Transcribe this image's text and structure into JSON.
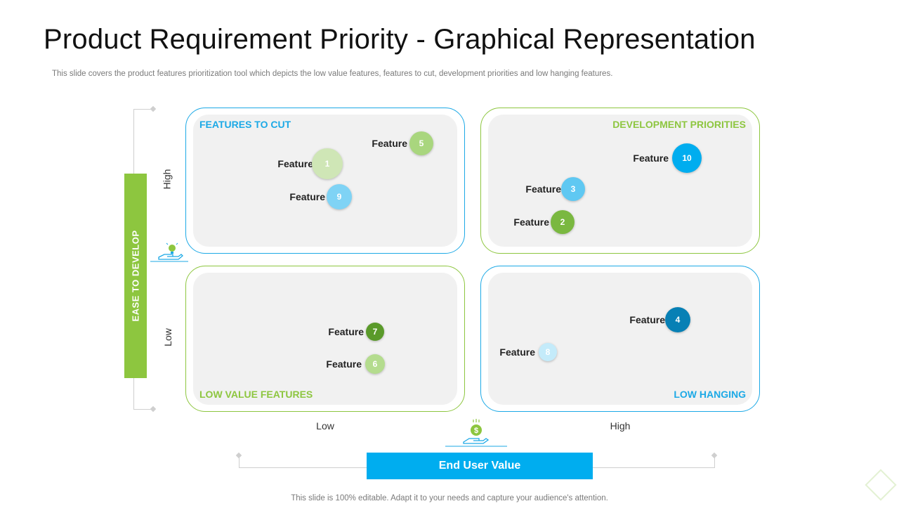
{
  "title": "Product Requirement Priority - Graphical Representation",
  "subtitle": "This slide covers the product features prioritization tool which depicts the low value features, features to cut,  development priorities and low hanging features.",
  "footer": "This slide is 100% editable. Adapt it to your needs and capture your audience's attention.",
  "y_axis": {
    "label": "EASE TO DEVELOP",
    "high": "High",
    "low": "Low"
  },
  "x_axis": {
    "label": "End User Value",
    "low": "Low",
    "high": "High"
  },
  "quadrants": {
    "top_left": "FEATURES TO CUT",
    "top_right": "DEVELOPMENT PRIORITIES",
    "bottom_left": "LOW VALUE FEATURES",
    "bottom_right": "LOW HANGING"
  },
  "features": [
    {
      "label": "Feature",
      "number": "5",
      "color": "#a9d67e"
    },
    {
      "label": "Feature",
      "number": "1",
      "color": "#cfe6b6"
    },
    {
      "label": "Feature",
      "number": "9",
      "color": "#7fd3f5"
    },
    {
      "label": "Feature",
      "number": "10",
      "color": "#00adef"
    },
    {
      "label": "Feature",
      "number": "3",
      "color": "#5fc8f2"
    },
    {
      "label": "Feature",
      "number": "2",
      "color": "#7ab840"
    },
    {
      "label": "Feature",
      "number": "7",
      "color": "#5a9a2a"
    },
    {
      "label": "Feature",
      "number": "6",
      "color": "#b4dc8e"
    },
    {
      "label": "Feature",
      "number": "4",
      "color": "#0780b5"
    },
    {
      "label": "Feature",
      "number": "8",
      "color": "#c4ebfa"
    }
  ],
  "icons": {
    "y_axis_icon": "hand-lightbulb-icon",
    "x_axis_icon": "hand-money-icon"
  }
}
